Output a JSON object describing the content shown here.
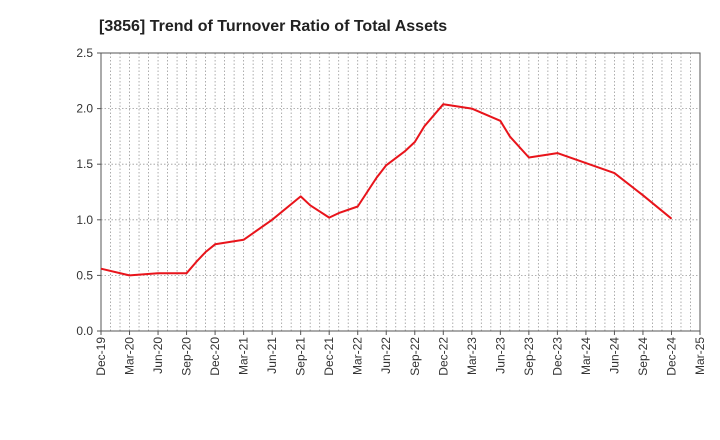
{
  "chart_data": {
    "type": "line",
    "title": "[3856]  Trend of Turnover Ratio of Total Assets",
    "xlabel": "",
    "ylabel": "",
    "ylim": [
      0,
      2.5
    ],
    "yticks": [
      "0.0",
      "0.5",
      "1.0",
      "1.5",
      "2.0",
      "2.5"
    ],
    "xtick_labels": [
      "Dec-19",
      "Mar-20",
      "Jun-20",
      "Sep-20",
      "Dec-20",
      "Mar-21",
      "Jun-21",
      "Sep-21",
      "Dec-21",
      "Mar-22",
      "Jun-22",
      "Sep-22",
      "Dec-22",
      "Mar-23",
      "Jun-23",
      "Sep-23",
      "Dec-23",
      "Mar-24",
      "Jun-24",
      "Sep-24",
      "Dec-24",
      "Mar-25"
    ],
    "grid": true,
    "line_color": "#e8141b",
    "series": [
      {
        "points": [
          [
            "Dec-19",
            0.56
          ],
          [
            "Mar-20",
            0.5
          ],
          [
            "Jun-20",
            0.52
          ],
          [
            "Aug-20",
            0.52
          ],
          [
            "Sep-20",
            0.52
          ],
          [
            "Oct-20",
            0.62
          ],
          [
            "Nov-20",
            0.71
          ],
          [
            "Dec-20",
            0.78
          ],
          [
            "Mar-21",
            0.82
          ],
          [
            "Jun-21",
            1.0
          ],
          [
            "Sep-21",
            1.21
          ],
          [
            "Oct-21",
            1.13
          ],
          [
            "Dec-21",
            1.02
          ],
          [
            "Jan-22",
            1.06
          ],
          [
            "Mar-22",
            1.12
          ],
          [
            "May-22",
            1.38
          ],
          [
            "Jun-22",
            1.49
          ],
          [
            "Aug-22",
            1.62
          ],
          [
            "Sep-22",
            1.7
          ],
          [
            "Oct-22",
            1.84
          ],
          [
            "Dec-22",
            2.04
          ],
          [
            "Mar-23",
            2.0
          ],
          [
            "Jun-23",
            1.89
          ],
          [
            "Jul-23",
            1.75
          ],
          [
            "Sep-23",
            1.56
          ],
          [
            "Dec-23",
            1.6
          ],
          [
            "Mar-24",
            1.51
          ],
          [
            "Jun-24",
            1.42
          ],
          [
            "Sep-24",
            1.22
          ],
          [
            "Dec-24",
            1.01
          ]
        ]
      }
    ]
  }
}
